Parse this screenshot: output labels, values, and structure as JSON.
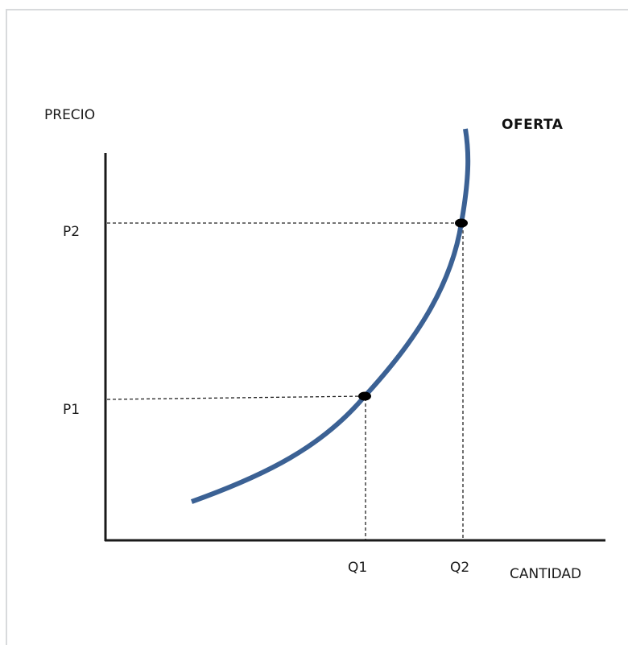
{
  "diagram": {
    "y_axis_label": "PRECIO",
    "x_axis_label": "CANTIDAD",
    "curve_label": "OFERTA",
    "curve_color": "#3b6194",
    "axis_color": "#1a1a1a",
    "points": [
      {
        "price_label": "P1",
        "quantity_label": "Q1"
      },
      {
        "price_label": "P2",
        "quantity_label": "Q2"
      }
    ]
  }
}
